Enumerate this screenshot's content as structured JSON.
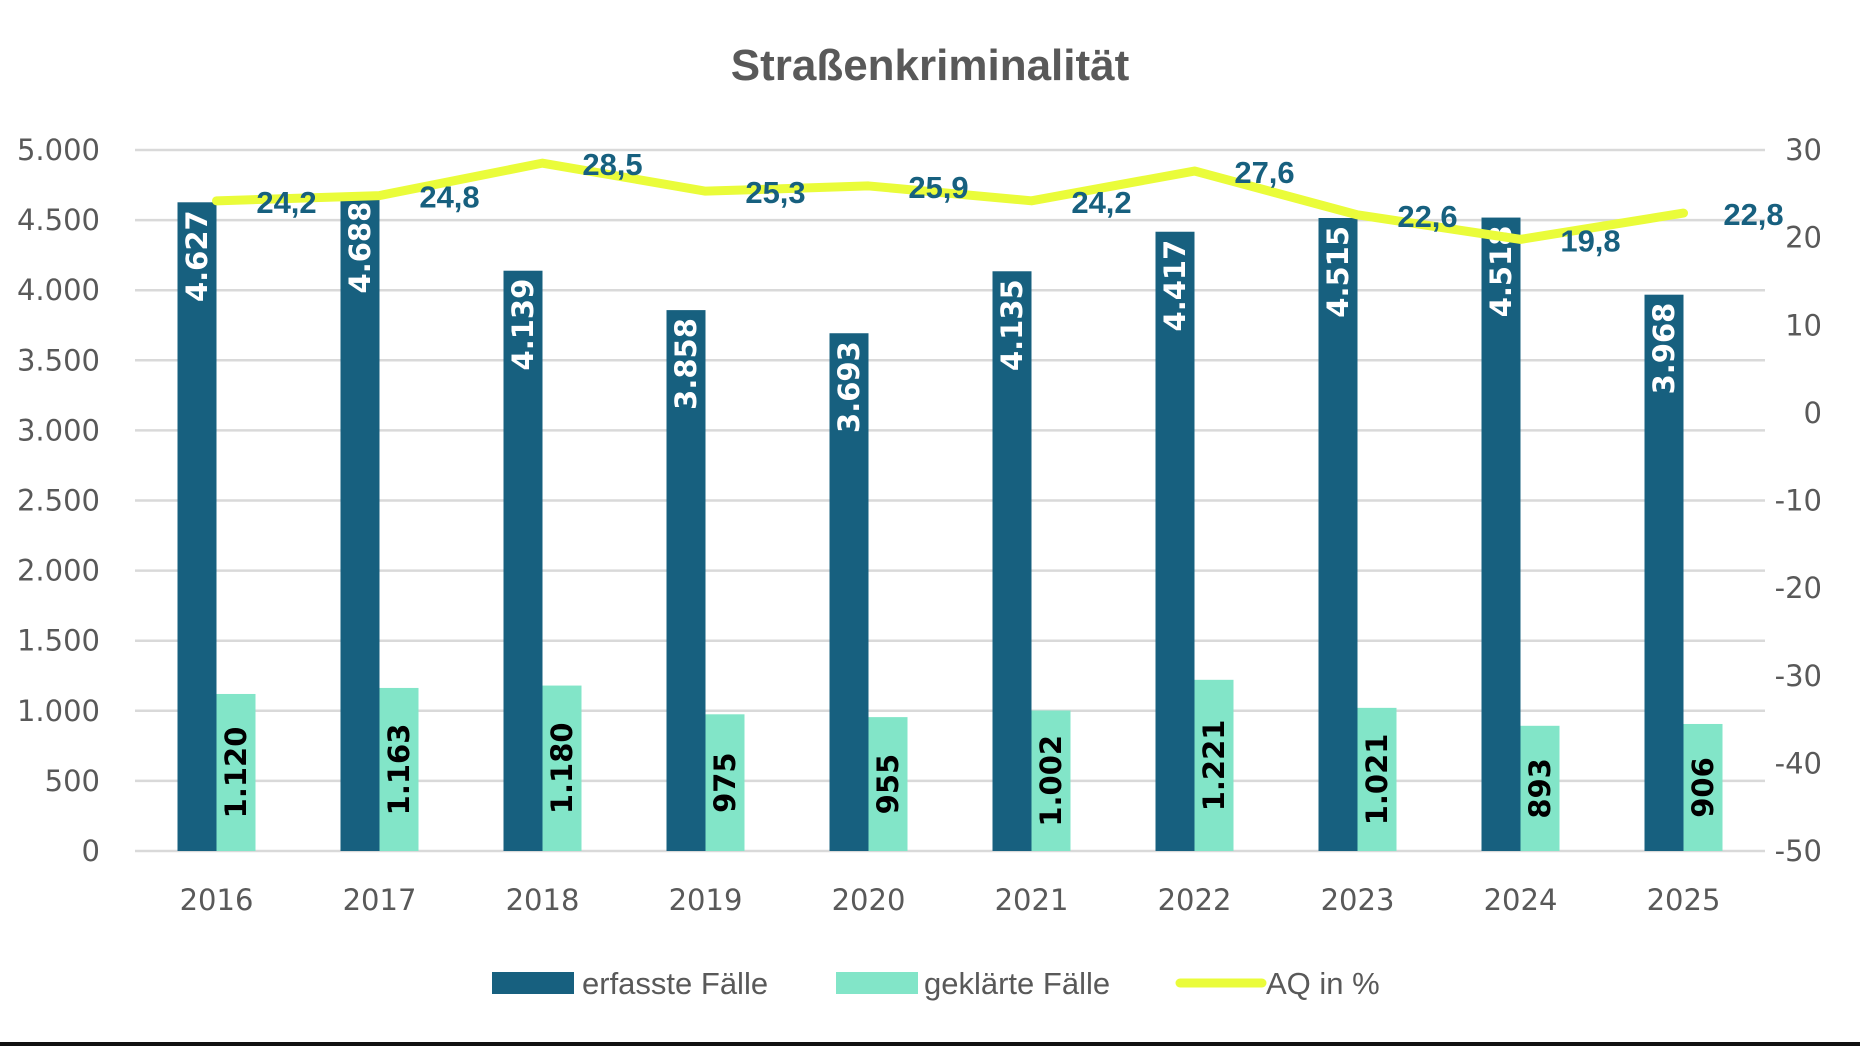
{
  "chart_data": {
    "type": "bar",
    "title": "Straßenkriminalität",
    "categories": [
      "2016",
      "2017",
      "2018",
      "2019",
      "2020",
      "2021",
      "2022",
      "2023",
      "2024",
      "2025"
    ],
    "series": [
      {
        "name": "erfasste Fälle",
        "type": "bar",
        "axis": "left",
        "color": "#17607f",
        "values": [
          4627,
          4688,
          4139,
          3858,
          3693,
          4135,
          4417,
          4515,
          4518,
          3968
        ],
        "labels": [
          "4.627",
          "4.688",
          "4.139",
          "3.858",
          "3.693",
          "4.135",
          "4.417",
          "4.515",
          "4.518",
          "3.968"
        ]
      },
      {
        "name": "geklärte Fälle",
        "type": "bar",
        "axis": "left",
        "color": "#82e5c8",
        "values": [
          1120,
          1163,
          1180,
          975,
          955,
          1002,
          1221,
          1021,
          893,
          906
        ],
        "labels": [
          "1.120",
          "1.163",
          "1.180",
          "975",
          "955",
          "1.002",
          "1.221",
          "1.021",
          "893",
          "906"
        ]
      },
      {
        "name": "AQ in %",
        "type": "line",
        "axis": "right",
        "color": "#eafc3a",
        "values": [
          24.2,
          24.8,
          28.5,
          25.3,
          25.9,
          24.2,
          27.6,
          22.6,
          19.8,
          22.8
        ],
        "labels": [
          "24,2",
          "24,8",
          "28,5",
          "25,3",
          "25,9",
          "24,2",
          "27,6",
          "22,6",
          "19,8",
          "22,8"
        ]
      }
    ],
    "left_axis": {
      "ylim": [
        0,
        5000
      ],
      "ticks": [
        0,
        500,
        1000,
        1500,
        2000,
        2500,
        3000,
        3500,
        4000,
        4500,
        5000
      ],
      "tick_labels": [
        "0",
        "500",
        "1.000",
        "1.500",
        "2.000",
        "2.500",
        "3.000",
        "3.500",
        "4.000",
        "4.500",
        "5.000"
      ]
    },
    "right_axis": {
      "ylim": [
        -50,
        30
      ],
      "ticks": [
        -50,
        -40,
        -30,
        -20,
        -10,
        0,
        10,
        20,
        30
      ],
      "tick_labels": [
        "-50",
        "-40",
        "-30",
        "-20",
        "-10",
        "0",
        "10",
        "20",
        "30"
      ]
    },
    "xlabel": "",
    "ylabel": "",
    "grid": true,
    "legend": {
      "position": "bottom",
      "entries": [
        "erfasste Fälle",
        "geklärte Fälle",
        "AQ in %"
      ]
    },
    "colors": {
      "grid": "#d9d9d9",
      "text": "#595959",
      "aq_label": "#17607f"
    }
  }
}
